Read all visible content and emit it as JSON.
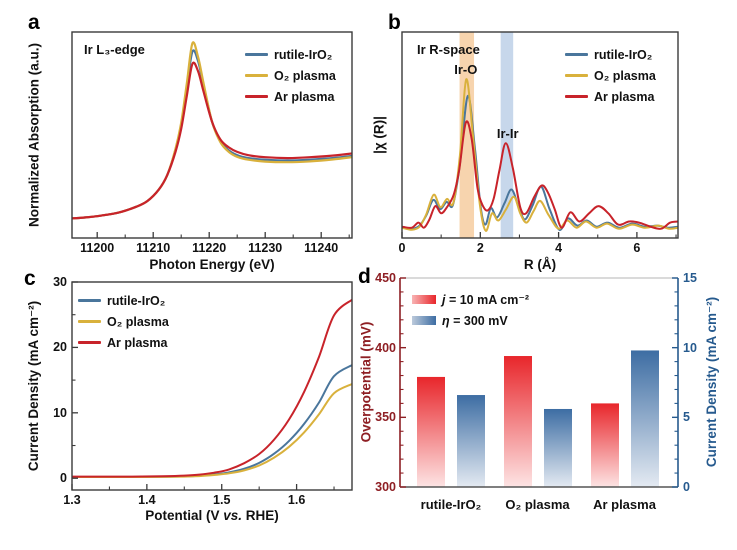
{
  "figure": {
    "panels": {
      "a": {
        "label": "a"
      },
      "b": {
        "label": "b"
      },
      "c": {
        "label": "c"
      },
      "d": {
        "label": "d"
      }
    }
  },
  "chart_data": [
    {
      "id": "a",
      "type": "line",
      "annotation": "Ir L₃-edge",
      "xlabel": "Photon Energy (eV)",
      "ylabel": "Normalized Absorption (a.u.)",
      "xlim": [
        11195.5,
        11245.5
      ],
      "ylim": [
        0,
        1
      ],
      "xticks": [
        "11200",
        "11210",
        "11220",
        "11230",
        "11240"
      ],
      "yticks": [],
      "legend_position": "top-right",
      "series": [
        {
          "name": "rutile-IrO₂",
          "color": "#4a769c",
          "x": [
            11195.5,
            11198,
            11201,
            11204,
            11207,
            11209,
            11211,
            11212.5,
            11214,
            11215,
            11216,
            11217,
            11218,
            11219,
            11220.5,
            11222,
            11223.5,
            11225,
            11227,
            11230,
            11234,
            11238,
            11242,
            11245.5
          ],
          "y": [
            0.095,
            0.1,
            0.11,
            0.125,
            0.152,
            0.18,
            0.235,
            0.305,
            0.43,
            0.55,
            0.73,
            0.905,
            0.86,
            0.74,
            0.565,
            0.47,
            0.425,
            0.402,
            0.388,
            0.38,
            0.376,
            0.38,
            0.388,
            0.398
          ]
        },
        {
          "name": "O₂ plasma",
          "color": "#d9b13c",
          "x": [
            11195.5,
            11198,
            11201,
            11204,
            11207,
            11209,
            11211,
            11212.5,
            11214,
            11215,
            11216,
            11217,
            11218,
            11219,
            11220.5,
            11222,
            11223.5,
            11225,
            11227,
            11230,
            11234,
            11238,
            11242,
            11245.5
          ],
          "y": [
            0.095,
            0.1,
            0.11,
            0.125,
            0.152,
            0.18,
            0.235,
            0.305,
            0.435,
            0.56,
            0.75,
            0.945,
            0.88,
            0.75,
            0.565,
            0.465,
            0.418,
            0.394,
            0.38,
            0.371,
            0.368,
            0.372,
            0.381,
            0.392
          ]
        },
        {
          "name": "Ar plasma",
          "color": "#c8232a",
          "x": [
            11195.5,
            11198,
            11201,
            11204,
            11207,
            11209,
            11211,
            11212.5,
            11214,
            11215,
            11216,
            11217,
            11218,
            11219,
            11220.5,
            11222,
            11223.5,
            11225,
            11227,
            11230,
            11234,
            11238,
            11242,
            11245.5
          ],
          "y": [
            0.095,
            0.1,
            0.11,
            0.125,
            0.152,
            0.18,
            0.235,
            0.305,
            0.42,
            0.53,
            0.69,
            0.845,
            0.81,
            0.71,
            0.565,
            0.478,
            0.44,
            0.418,
            0.402,
            0.392,
            0.388,
            0.392,
            0.4,
            0.41
          ]
        }
      ]
    },
    {
      "id": "b",
      "type": "line",
      "annotation": "Ir R-space",
      "xlabel": "R (Å)",
      "ylabel": "|χ (R)|",
      "xlim": [
        0,
        7.05
      ],
      "ylim": [
        0,
        1
      ],
      "xticks": [
        "0",
        "2",
        "4",
        "6"
      ],
      "yticks": [],
      "legend_position": "top-right",
      "bands": [
        {
          "x0": 1.47,
          "x1": 1.84,
          "color": "#f7d4ae"
        },
        {
          "x0": 2.52,
          "x1": 2.84,
          "color": "#c7d7eb"
        }
      ],
      "peak_labels": [
        {
          "text": "Ir-O",
          "x": 1.63,
          "yf": 0.855
        },
        {
          "text": "Ir-Ir",
          "x": 2.7,
          "yf": 0.545
        }
      ],
      "series": [
        {
          "name": "rutile-IrO₂",
          "color": "#4a769c",
          "x": [
            0,
            0.25,
            0.45,
            0.62,
            0.8,
            0.97,
            1.14,
            1.3,
            1.48,
            1.68,
            1.86,
            2.01,
            2.13,
            2.27,
            2.43,
            2.62,
            2.8,
            2.98,
            3.14,
            3.34,
            3.55,
            3.77,
            4.02,
            4.24,
            4.48,
            4.72,
            4.97,
            5.25,
            5.55,
            5.88,
            6.2,
            6.52,
            6.8,
            7.05
          ],
          "y": [
            0.055,
            0.045,
            0.06,
            0.11,
            0.185,
            0.14,
            0.175,
            0.16,
            0.36,
            0.69,
            0.44,
            0.15,
            0.065,
            0.145,
            0.1,
            0.17,
            0.235,
            0.15,
            0.09,
            0.16,
            0.25,
            0.14,
            0.04,
            0.095,
            0.06,
            0.085,
            0.055,
            0.075,
            0.05,
            0.07,
            0.055,
            0.06,
            0.05,
            0.055
          ]
        },
        {
          "name": "O₂ plasma",
          "color": "#d9b13c",
          "x": [
            0,
            0.25,
            0.45,
            0.62,
            0.81,
            0.98,
            1.15,
            1.31,
            1.48,
            1.64,
            1.81,
            1.99,
            2.14,
            2.3,
            2.46,
            2.66,
            2.86,
            3.02,
            3.18,
            3.36,
            3.53,
            3.75,
            4.0,
            4.22,
            4.46,
            4.7,
            4.97,
            5.24,
            5.54,
            5.88,
            6.2,
            6.55,
            6.82,
            7.05
          ],
          "y": [
            0.05,
            0.04,
            0.055,
            0.115,
            0.21,
            0.15,
            0.19,
            0.17,
            0.4,
            0.77,
            0.5,
            0.16,
            0.035,
            0.12,
            0.085,
            0.14,
            0.2,
            0.12,
            0.075,
            0.13,
            0.18,
            0.11,
            0.045,
            0.085,
            0.05,
            0.08,
            0.05,
            0.07,
            0.045,
            0.065,
            0.05,
            0.06,
            0.045,
            0.05
          ]
        },
        {
          "name": "Ar plasma",
          "color": "#c8232a",
          "x": [
            0,
            0.25,
            0.42,
            0.56,
            0.7,
            0.85,
            1.0,
            1.15,
            1.32,
            1.46,
            1.63,
            1.78,
            1.93,
            2.07,
            2.2,
            2.34,
            2.49,
            2.65,
            2.83,
            3.02,
            3.17,
            3.38,
            3.57,
            3.73,
            3.9,
            4.08,
            4.3,
            4.53,
            4.78,
            5.02,
            5.27,
            5.52,
            5.8,
            6.05,
            6.35,
            6.62,
            6.85,
            7.05
          ],
          "y": [
            0.055,
            0.05,
            0.075,
            0.05,
            0.09,
            0.155,
            0.12,
            0.15,
            0.21,
            0.33,
            0.56,
            0.48,
            0.24,
            0.155,
            0.135,
            0.19,
            0.33,
            0.46,
            0.34,
            0.15,
            0.12,
            0.2,
            0.255,
            0.22,
            0.14,
            0.05,
            0.125,
            0.08,
            0.12,
            0.155,
            0.12,
            0.065,
            0.08,
            0.075,
            0.055,
            0.045,
            0.075,
            0.08
          ]
        }
      ]
    },
    {
      "id": "c",
      "type": "line",
      "xlabel_parts": {
        "pre": "Potential (V ",
        "italic": "vs.",
        "post": " RHE)"
      },
      "ylabel": "Current Density (mA cm⁻²)",
      "xlim": [
        1.3,
        1.674
      ],
      "ylim": [
        -1.8,
        30
      ],
      "xticks": [
        "1.3",
        "1.4",
        "1.5",
        "1.6"
      ],
      "yticks": [
        "0",
        "10",
        "20",
        "30"
      ],
      "legend_position": "top-left",
      "series": [
        {
          "name": "rutile-IrO₂",
          "color": "#4a769c",
          "x": [
            1.3,
            1.34,
            1.38,
            1.42,
            1.45,
            1.47,
            1.49,
            1.51,
            1.53,
            1.55,
            1.57,
            1.59,
            1.61,
            1.63,
            1.65,
            1.674
          ],
          "y": [
            0.18,
            0.18,
            0.18,
            0.22,
            0.28,
            0.38,
            0.58,
            0.9,
            1.45,
            2.35,
            3.75,
            5.7,
            8.3,
            11.6,
            15.6,
            17.3
          ]
        },
        {
          "name": "O₂ plasma",
          "color": "#d9b13c",
          "x": [
            1.3,
            1.34,
            1.38,
            1.42,
            1.45,
            1.47,
            1.49,
            1.51,
            1.53,
            1.55,
            1.57,
            1.59,
            1.61,
            1.63,
            1.65,
            1.674
          ],
          "y": [
            0.18,
            0.18,
            0.18,
            0.2,
            0.25,
            0.33,
            0.5,
            0.75,
            1.2,
            1.95,
            3.15,
            4.8,
            7.0,
            9.8,
            13.0,
            14.4
          ]
        },
        {
          "name": "Ar plasma",
          "color": "#c8232a",
          "x": [
            1.3,
            1.34,
            1.38,
            1.42,
            1.45,
            1.47,
            1.49,
            1.51,
            1.53,
            1.55,
            1.57,
            1.59,
            1.61,
            1.63,
            1.65,
            1.674
          ],
          "y": [
            0.25,
            0.25,
            0.25,
            0.3,
            0.4,
            0.55,
            0.85,
            1.35,
            2.3,
            3.7,
            5.9,
            9.0,
            13.2,
            18.6,
            24.9,
            27.3
          ]
        }
      ]
    },
    {
      "id": "d",
      "type": "bar",
      "categories": [
        "rutile-IrO₂",
        "O₂ plasma",
        "Ar plasma"
      ],
      "legend": [
        {
          "label_sym": "j",
          "label_rest": " = 10 mA cm⁻²",
          "from": "#f8b4b4",
          "to": "#e8262b"
        },
        {
          "label_sym": "η",
          "label_rest": " = 300 mV",
          "from": "#bccadb",
          "to": "#3d6da3"
        }
      ],
      "left_axis": {
        "label": "Overpotential (mV)",
        "color": "#8e1f24",
        "lim": [
          300,
          450
        ],
        "ticks": [
          "300",
          "350",
          "400",
          "450"
        ],
        "values": [
          379,
          394,
          360
        ],
        "bar_top": "#e8262b",
        "bar_bottom": "#fde4e4"
      },
      "right_axis": {
        "label": "Current Density (mA cm⁻²)",
        "color": "#265a8e",
        "lim": [
          0,
          15
        ],
        "ticks": [
          "0",
          "5",
          "10",
          "15"
        ],
        "values": [
          6.6,
          5.6,
          9.8
        ],
        "bar_top": "#3d6da3",
        "bar_bottom": "#e4eaf2"
      }
    }
  ]
}
